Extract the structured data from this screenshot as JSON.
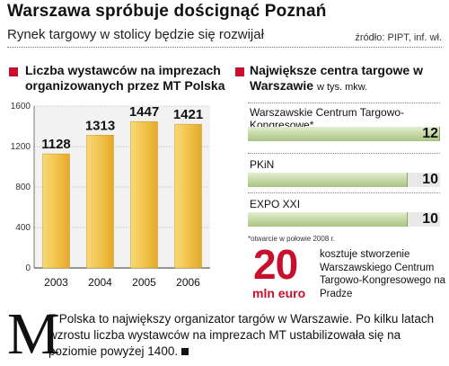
{
  "header": {
    "title": "Warszawa spróbuje doścignąć Poznań",
    "subtitle": "Rynek targowy w stolicy będzie się rozwijał",
    "source": "źródło: PIPT, inf. wł."
  },
  "colors": {
    "accent": "#c8102e",
    "bar_left": "#f1c44c",
    "bar_right": "#b9d197"
  },
  "chart_data": [
    {
      "type": "bar",
      "title": "Liczba wystawców na imprezach organizowanych przez MT Polska",
      "categories": [
        "2003",
        "2004",
        "2005",
        "2006"
      ],
      "values": [
        1128,
        1313,
        1447,
        1421
      ],
      "ylim": [
        0,
        1600
      ],
      "yticks": [
        "0",
        "400",
        "800",
        "1200",
        "1600"
      ],
      "grid": true
    },
    {
      "type": "bar",
      "orientation": "horizontal",
      "title": "Największe centra targowe w Warszawie",
      "unit": "w tys. mkw.",
      "categories": [
        "Warszawskie Centrum Targowo-Kongresowe*",
        "PKiN",
        "EXPO XXI"
      ],
      "values": [
        12,
        10,
        10
      ],
      "xlim": [
        0,
        12
      ],
      "footnote": "*otwarcie w połowie 2008 r."
    }
  ],
  "callout": {
    "number": "20",
    "unit": "mln euro",
    "text": "kosztuje stworzenie Warszawskiego Centrum Targowo-Kongresowego na Pradze"
  },
  "article": {
    "dropcap": "M",
    "text": "T Polska to największy organizator targów w Warszawie. Po kilku latach wzrostu liczba wystawców na imprezach MT ustabilizowała się na poziomie powyżej 1400."
  }
}
